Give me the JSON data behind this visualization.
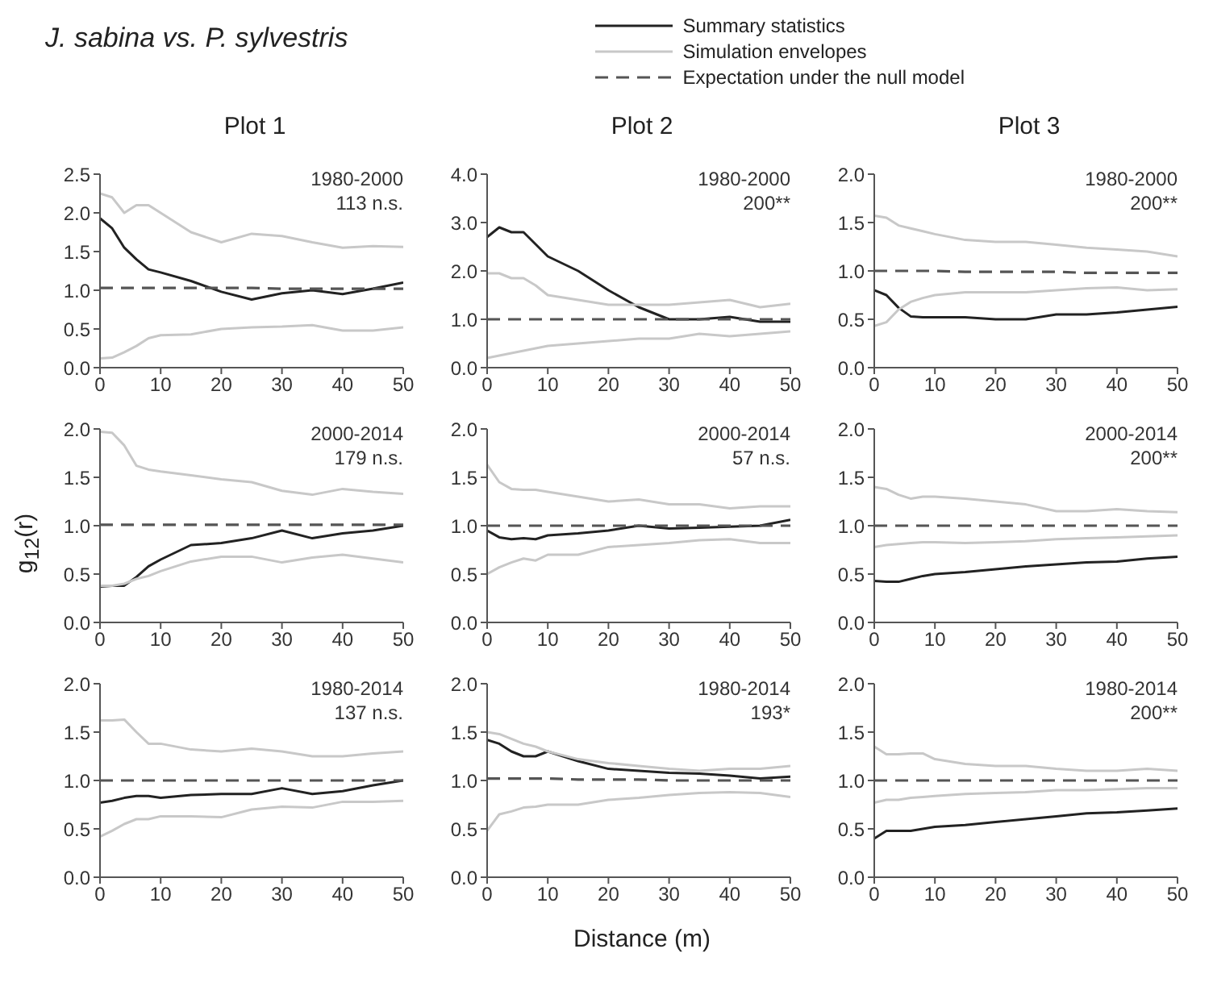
{
  "chart_data": [
    {
      "type": "line",
      "title": "Plot 1",
      "legend": "top right",
      "annotations": [
        "J. sabina vs. P. sylvestris",
        "1980-2000",
        "113 n.s."
      ],
      "x": [
        0,
        2,
        4,
        6,
        8,
        10,
        15,
        20,
        25,
        30,
        35,
        40,
        45,
        50
      ],
      "xlim": [
        0,
        50
      ],
      "xticks": [
        0,
        10,
        20,
        30,
        40,
        50
      ],
      "ylim": [
        0,
        2.5
      ],
      "yticks": [
        {
          "value": 0,
          "label": "0.0"
        },
        0.5,
        {
          "value": 1,
          "label": "1.0"
        },
        1.5,
        {
          "value": 2,
          "label": "2.0"
        },
        2.5
      ],
      "series": [
        {
          "name": "Summary statistics",
          "color": "#222222",
          "values": [
            1.93,
            1.8,
            1.55,
            1.4,
            1.27,
            1.23,
            1.12,
            0.98,
            0.88,
            0.96,
            1.0,
            0.95,
            1.02,
            1.1
          ]
        },
        {
          "name": "Simulation envelopes",
          "color": "#c8c8c8",
          "values": [
            2.25,
            2.2,
            2.0,
            2.1,
            2.1,
            2.0,
            1.75,
            1.62,
            1.73,
            1.7,
            1.62,
            1.55,
            1.57,
            1.56
          ]
        },
        {
          "color": "#c8c8c8",
          "values": [
            0.12,
            0.13,
            0.2,
            0.28,
            0.38,
            0.42,
            0.43,
            0.5,
            0.52,
            0.53,
            0.55,
            0.48,
            0.48,
            0.52
          ]
        },
        {
          "name": "Expectation under the null model",
          "color": "#555555",
          "line_style": "dashed",
          "values": [
            1.03,
            1.03,
            1.03,
            1.03,
            1.03,
            1.03,
            1.03,
            1.03,
            1.03,
            1.02,
            1.02,
            1.02,
            1.02,
            1.02
          ]
        }
      ]
    },
    {
      "type": "line",
      "title": "Plot 2",
      "annotations": [
        "1980-2000",
        "200**"
      ],
      "x": [
        0,
        2,
        4,
        6,
        8,
        10,
        15,
        20,
        25,
        30,
        35,
        40,
        45,
        50
      ],
      "xlim": [
        0,
        50
      ],
      "xticks": [
        0,
        10,
        20,
        30,
        40,
        50
      ],
      "ylim": [
        0,
        4
      ],
      "yticks": [
        {
          "value": 0,
          "label": "0.0"
        },
        {
          "value": 1,
          "label": "1.0"
        },
        {
          "value": 2,
          "label": "2.0"
        },
        {
          "value": 3,
          "label": "3.0"
        },
        {
          "value": 4,
          "label": "4.0"
        }
      ],
      "series": [
        {
          "color": "#222222",
          "values": [
            2.7,
            2.9,
            2.8,
            2.8,
            2.55,
            2.3,
            2.0,
            1.6,
            1.25,
            1.0,
            1.0,
            1.05,
            0.95,
            0.95
          ]
        },
        {
          "color": "#c8c8c8",
          "values": [
            1.95,
            1.95,
            1.85,
            1.85,
            1.7,
            1.5,
            1.4,
            1.3,
            1.3,
            1.3,
            1.35,
            1.4,
            1.25,
            1.32
          ]
        },
        {
          "color": "#c8c8c8",
          "values": [
            0.2,
            0.25,
            0.3,
            0.35,
            0.4,
            0.45,
            0.5,
            0.55,
            0.6,
            0.6,
            0.7,
            0.65,
            0.7,
            0.75
          ]
        },
        {
          "color": "#555555",
          "line_style": "dashed",
          "values": [
            1.0,
            1.0,
            1.0,
            1.0,
            1.0,
            1.0,
            1.0,
            1.0,
            1.0,
            1.0,
            1.0,
            1.0,
            1.0,
            1.0
          ]
        }
      ]
    },
    {
      "type": "line",
      "title": "Plot 3",
      "annotations": [
        "1980-2000",
        "200**"
      ],
      "x": [
        0,
        2,
        4,
        6,
        8,
        10,
        15,
        20,
        25,
        30,
        35,
        40,
        45,
        50
      ],
      "xlim": [
        0,
        50
      ],
      "xticks": [
        0,
        10,
        20,
        30,
        40,
        50
      ],
      "ylim": [
        0,
        2
      ],
      "yticks": [
        {
          "value": 0,
          "label": "0.0"
        },
        0.5,
        {
          "value": 1,
          "label": "1.0"
        },
        1.5,
        {
          "value": 2,
          "label": "2.0"
        }
      ],
      "series": [
        {
          "color": "#222222",
          "values": [
            0.8,
            0.75,
            0.62,
            0.53,
            0.52,
            0.52,
            0.52,
            0.5,
            0.5,
            0.55,
            0.55,
            0.57,
            0.6,
            0.63
          ]
        },
        {
          "color": "#c8c8c8",
          "values": [
            1.57,
            1.55,
            1.47,
            1.44,
            1.41,
            1.38,
            1.32,
            1.3,
            1.3,
            1.27,
            1.24,
            1.22,
            1.2,
            1.15
          ]
        },
        {
          "color": "#c8c8c8",
          "values": [
            0.43,
            0.47,
            0.6,
            0.68,
            0.72,
            0.75,
            0.78,
            0.78,
            0.78,
            0.8,
            0.82,
            0.83,
            0.8,
            0.81
          ]
        },
        {
          "color": "#555555",
          "line_style": "dashed",
          "values": [
            1.0,
            1.0,
            1.0,
            1.0,
            1.0,
            1.0,
            0.99,
            0.99,
            0.99,
            0.99,
            0.98,
            0.98,
            0.98,
            0.98
          ]
        }
      ]
    },
    {
      "type": "line",
      "ylabel": "g$_{12}$(r)",
      "annotations": [
        "2000-2014",
        "179 n.s."
      ],
      "x": [
        0,
        2,
        4,
        6,
        8,
        10,
        15,
        20,
        25,
        30,
        35,
        40,
        45,
        50
      ],
      "xlim": [
        0,
        50
      ],
      "xticks": [
        0,
        10,
        20,
        30,
        40,
        50
      ],
      "ylim": [
        0,
        2
      ],
      "yticks": [
        {
          "value": 0,
          "label": "0.0"
        },
        0.5,
        {
          "value": 1,
          "label": "1.0"
        },
        1.5,
        {
          "value": 2,
          "label": "2.0"
        }
      ],
      "series": [
        {
          "color": "#222222",
          "values": [
            0.37,
            0.38,
            0.38,
            0.47,
            0.58,
            0.65,
            0.8,
            0.82,
            0.87,
            0.95,
            0.87,
            0.92,
            0.95,
            1.0
          ]
        },
        {
          "color": "#c8c8c8",
          "values": [
            1.97,
            1.96,
            1.83,
            1.62,
            1.58,
            1.56,
            1.52,
            1.48,
            1.45,
            1.36,
            1.32,
            1.38,
            1.35,
            1.33
          ]
        },
        {
          "color": "#c8c8c8",
          "values": [
            0.38,
            0.38,
            0.4,
            0.45,
            0.48,
            0.53,
            0.63,
            0.68,
            0.68,
            0.62,
            0.67,
            0.7,
            0.66,
            0.62
          ]
        },
        {
          "color": "#555555",
          "line_style": "dashed",
          "values": [
            1.01,
            1.01,
            1.01,
            1.01,
            1.01,
            1.01,
            1.01,
            1.01,
            1.01,
            1.01,
            1.01,
            1.01,
            1.01,
            1.01
          ]
        }
      ]
    },
    {
      "type": "line",
      "annotations": [
        "2000-2014",
        "57 n.s."
      ],
      "x": [
        0,
        2,
        4,
        6,
        8,
        10,
        15,
        20,
        25,
        30,
        35,
        40,
        45,
        50
      ],
      "xlim": [
        0,
        50
      ],
      "xticks": [
        0,
        10,
        20,
        30,
        40,
        50
      ],
      "ylim": [
        0,
        2
      ],
      "yticks": [
        {
          "value": 0,
          "label": "0.0"
        },
        0.5,
        {
          "value": 1,
          "label": "1.0"
        },
        1.5,
        {
          "value": 2,
          "label": "2.0"
        }
      ],
      "series": [
        {
          "color": "#222222",
          "values": [
            0.95,
            0.88,
            0.86,
            0.87,
            0.86,
            0.9,
            0.92,
            0.95,
            1.0,
            0.97,
            0.98,
            0.99,
            1.0,
            1.06
          ]
        },
        {
          "color": "#c8c8c8",
          "values": [
            1.63,
            1.45,
            1.38,
            1.37,
            1.37,
            1.35,
            1.3,
            1.25,
            1.27,
            1.22,
            1.22,
            1.18,
            1.2,
            1.2
          ]
        },
        {
          "color": "#c8c8c8",
          "values": [
            0.5,
            0.57,
            0.62,
            0.66,
            0.64,
            0.7,
            0.7,
            0.78,
            0.8,
            0.82,
            0.85,
            0.86,
            0.82,
            0.82
          ]
        },
        {
          "color": "#555555",
          "line_style": "dashed",
          "values": [
            1.0,
            1.0,
            1.0,
            1.0,
            1.0,
            1.0,
            1.0,
            1.0,
            1.0,
            1.0,
            1.0,
            1.0,
            1.0,
            1.0
          ]
        }
      ]
    },
    {
      "type": "line",
      "annotations": [
        "2000-2014",
        "200**"
      ],
      "x": [
        0,
        2,
        4,
        6,
        8,
        10,
        15,
        20,
        25,
        30,
        35,
        40,
        45,
        50
      ],
      "xlim": [
        0,
        50
      ],
      "xticks": [
        0,
        10,
        20,
        30,
        40,
        50
      ],
      "ylim": [
        0,
        2
      ],
      "yticks": [
        {
          "value": 0,
          "label": "0.0"
        },
        0.5,
        {
          "value": 1,
          "label": "1.0"
        },
        1.5,
        {
          "value": 2,
          "label": "2.0"
        }
      ],
      "series": [
        {
          "color": "#222222",
          "values": [
            0.43,
            0.42,
            0.42,
            0.45,
            0.48,
            0.5,
            0.52,
            0.55,
            0.58,
            0.6,
            0.62,
            0.63,
            0.66,
            0.68
          ]
        },
        {
          "color": "#c8c8c8",
          "values": [
            1.4,
            1.38,
            1.32,
            1.28,
            1.3,
            1.3,
            1.28,
            1.25,
            1.22,
            1.15,
            1.15,
            1.17,
            1.15,
            1.14
          ]
        },
        {
          "color": "#c8c8c8",
          "values": [
            0.78,
            0.8,
            0.81,
            0.82,
            0.83,
            0.83,
            0.82,
            0.83,
            0.84,
            0.86,
            0.87,
            0.88,
            0.89,
            0.9
          ]
        },
        {
          "color": "#555555",
          "line_style": "dashed",
          "values": [
            1.0,
            1.0,
            1.0,
            1.0,
            1.0,
            1.0,
            1.0,
            1.0,
            1.0,
            1.0,
            1.0,
            1.0,
            1.0,
            1.0
          ]
        }
      ]
    },
    {
      "type": "line",
      "annotations": [
        "1980-2014",
        "137 n.s."
      ],
      "x": [
        0,
        2,
        4,
        6,
        8,
        10,
        15,
        20,
        25,
        30,
        35,
        40,
        45,
        50
      ],
      "xlim": [
        0,
        50
      ],
      "xticks": [
        0,
        10,
        20,
        30,
        40,
        50
      ],
      "ylim": [
        0,
        2
      ],
      "yticks": [
        {
          "value": 0,
          "label": "0.0"
        },
        0.5,
        {
          "value": 1,
          "label": "1.0"
        },
        1.5,
        {
          "value": 2,
          "label": "2.0"
        }
      ],
      "series": [
        {
          "color": "#222222",
          "values": [
            0.77,
            0.79,
            0.82,
            0.84,
            0.84,
            0.82,
            0.85,
            0.86,
            0.86,
            0.92,
            0.86,
            0.89,
            0.95,
            1.0
          ]
        },
        {
          "color": "#c8c8c8",
          "values": [
            1.62,
            1.62,
            1.63,
            1.5,
            1.38,
            1.38,
            1.32,
            1.3,
            1.33,
            1.3,
            1.25,
            1.25,
            1.28,
            1.3
          ]
        },
        {
          "color": "#c8c8c8",
          "values": [
            0.42,
            0.48,
            0.55,
            0.6,
            0.6,
            0.63,
            0.63,
            0.62,
            0.7,
            0.73,
            0.72,
            0.78,
            0.78,
            0.79
          ]
        },
        {
          "color": "#555555",
          "line_style": "dashed",
          "values": [
            1.0,
            1.0,
            1.0,
            1.0,
            1.0,
            1.0,
            1.0,
            1.0,
            1.0,
            1.0,
            1.0,
            1.0,
            1.0,
            1.0
          ]
        }
      ]
    },
    {
      "type": "line",
      "xlabel": "Distance (m)",
      "annotations": [
        "1980-2014",
        "193*"
      ],
      "x": [
        0,
        2,
        4,
        6,
        8,
        10,
        15,
        20,
        25,
        30,
        35,
        40,
        45,
        50
      ],
      "xlim": [
        0,
        50
      ],
      "xticks": [
        0,
        10,
        20,
        30,
        40,
        50
      ],
      "ylim": [
        0,
        2
      ],
      "yticks": [
        {
          "value": 0,
          "label": "0.0"
        },
        0.5,
        {
          "value": 1,
          "label": "1.0"
        },
        1.5,
        {
          "value": 2,
          "label": "2.0"
        }
      ],
      "series": [
        {
          "color": "#222222",
          "values": [
            1.42,
            1.38,
            1.3,
            1.25,
            1.25,
            1.3,
            1.2,
            1.12,
            1.1,
            1.08,
            1.07,
            1.05,
            1.02,
            1.04
          ]
        },
        {
          "color": "#c8c8c8",
          "values": [
            1.5,
            1.48,
            1.43,
            1.38,
            1.35,
            1.3,
            1.22,
            1.18,
            1.15,
            1.12,
            1.1,
            1.12,
            1.12,
            1.15
          ]
        },
        {
          "color": "#c8c8c8",
          "values": [
            0.48,
            0.65,
            0.68,
            0.72,
            0.73,
            0.75,
            0.75,
            0.8,
            0.82,
            0.85,
            0.87,
            0.88,
            0.87,
            0.83
          ]
        },
        {
          "color": "#555555",
          "line_style": "dashed",
          "values": [
            1.02,
            1.02,
            1.02,
            1.02,
            1.02,
            1.02,
            1.01,
            1.01,
            1.01,
            1.0,
            1.0,
            1.0,
            1.0,
            1.0
          ]
        }
      ]
    },
    {
      "type": "line",
      "annotations": [
        "1980-2014",
        "200**"
      ],
      "x": [
        0,
        2,
        4,
        6,
        8,
        10,
        15,
        20,
        25,
        30,
        35,
        40,
        45,
        50
      ],
      "xlim": [
        0,
        50
      ],
      "xticks": [
        0,
        10,
        20,
        30,
        40,
        50
      ],
      "ylim": [
        0,
        2
      ],
      "yticks": [
        {
          "value": 0,
          "label": "0.0"
        },
        0.5,
        {
          "value": 1,
          "label": "1.0"
        },
        1.5,
        {
          "value": 2,
          "label": "2.0"
        }
      ],
      "series": [
        {
          "color": "#222222",
          "values": [
            0.4,
            0.48,
            0.48,
            0.48,
            0.5,
            0.52,
            0.54,
            0.57,
            0.6,
            0.63,
            0.66,
            0.67,
            0.69,
            0.71
          ]
        },
        {
          "color": "#c8c8c8",
          "values": [
            1.35,
            1.27,
            1.27,
            1.28,
            1.28,
            1.22,
            1.17,
            1.15,
            1.15,
            1.12,
            1.1,
            1.1,
            1.12,
            1.1
          ]
        },
        {
          "color": "#c8c8c8",
          "values": [
            0.77,
            0.8,
            0.8,
            0.82,
            0.83,
            0.84,
            0.86,
            0.87,
            0.88,
            0.9,
            0.9,
            0.91,
            0.92,
            0.92
          ]
        },
        {
          "color": "#555555",
          "line_style": "dashed",
          "values": [
            1.0,
            1.0,
            1.0,
            1.0,
            1.0,
            1.0,
            1.0,
            1.0,
            1.0,
            1.0,
            1.0,
            1.0,
            1.0,
            1.0
          ]
        }
      ]
    }
  ]
}
